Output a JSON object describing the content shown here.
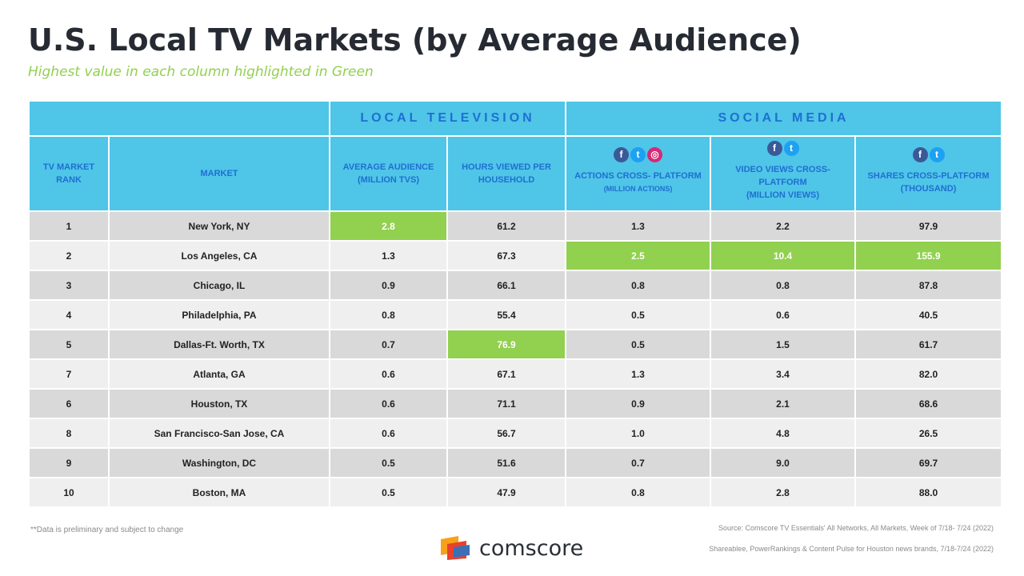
{
  "title": "U.S. Local TV Markets (by Average Audience)",
  "subtitle": "Highest value in each column highlighted in Green",
  "group_headers": {
    "local_tv": "LOCAL TELEVISION",
    "social": "SOCIAL MEDIA"
  },
  "columns": {
    "rank": "TV MARKET RANK",
    "market": "MARKET",
    "avg_audience": "AVERAGE AUDIENCE",
    "avg_audience_unit": "(MILLION TVS)",
    "hours": "HOURS VIEWED PER HOUSEHOLD",
    "actions": "ACTIONS CROSS- PLATFORM",
    "actions_unit": "(MILLION ACTIONS)",
    "video": "VIDEO VIEWS CROSS- PLATFORM",
    "video_unit": "(MILLION VIEWS)",
    "shares": "SHARES CROSS-PLATFORM",
    "shares_unit": "(THOUSAND)"
  },
  "rows": [
    {
      "rank": "1",
      "market": "New York, NY",
      "avg": "2.8",
      "hours": "61.2",
      "actions": "1.3",
      "video": "2.2",
      "shares": "97.9"
    },
    {
      "rank": "2",
      "market": "Los Angeles, CA",
      "avg": "1.3",
      "hours": "67.3",
      "actions": "2.5",
      "video": "10.4",
      "shares": "155.9"
    },
    {
      "rank": "3",
      "market": "Chicago, IL",
      "avg": "0.9",
      "hours": "66.1",
      "actions": "0.8",
      "video": "0.8",
      "shares": "87.8"
    },
    {
      "rank": "4",
      "market": "Philadelphia, PA",
      "avg": "0.8",
      "hours": "55.4",
      "actions": "0.5",
      "video": "0.6",
      "shares": "40.5"
    },
    {
      "rank": "5",
      "market": "Dallas-Ft. Worth, TX",
      "avg": "0.7",
      "hours": "76.9",
      "actions": "0.5",
      "video": "1.5",
      "shares": "61.7"
    },
    {
      "rank": "7",
      "market": "Atlanta, GA",
      "avg": "0.6",
      "hours": "67.1",
      "actions": "1.3",
      "video": "3.4",
      "shares": "82.0"
    },
    {
      "rank": "6",
      "market": "Houston, TX",
      "avg": "0.6",
      "hours": "71.1",
      "actions": "0.9",
      "video": "2.1",
      "shares": "68.6"
    },
    {
      "rank": "8",
      "market": "San Francisco-San Jose, CA",
      "avg": "0.6",
      "hours": "56.7",
      "actions": "1.0",
      "video": "4.8",
      "shares": "26.5"
    },
    {
      "rank": "9",
      "market": "Washington, DC",
      "avg": "0.5",
      "hours": "51.6",
      "actions": "0.7",
      "video": "9.0",
      "shares": "69.7"
    },
    {
      "rank": "10",
      "market": "Boston, MA",
      "avg": "0.5",
      "hours": "47.9",
      "actions": "0.8",
      "video": "2.8",
      "shares": "88.0"
    }
  ],
  "highlight_color": "#92d050",
  "header_color": "#4fc5e8",
  "footnote": "**Data is preliminary and subject to change",
  "source_line1": "Source: Comscore TV Essentials' All Networks, All Markets, Week of 7/18- 7/24 (2022)",
  "source_line2": "Shareablee, PowerRankings & Content Pulse for Houston news brands, 7/18-7/24 (2022)",
  "logo_text": "comscore"
}
